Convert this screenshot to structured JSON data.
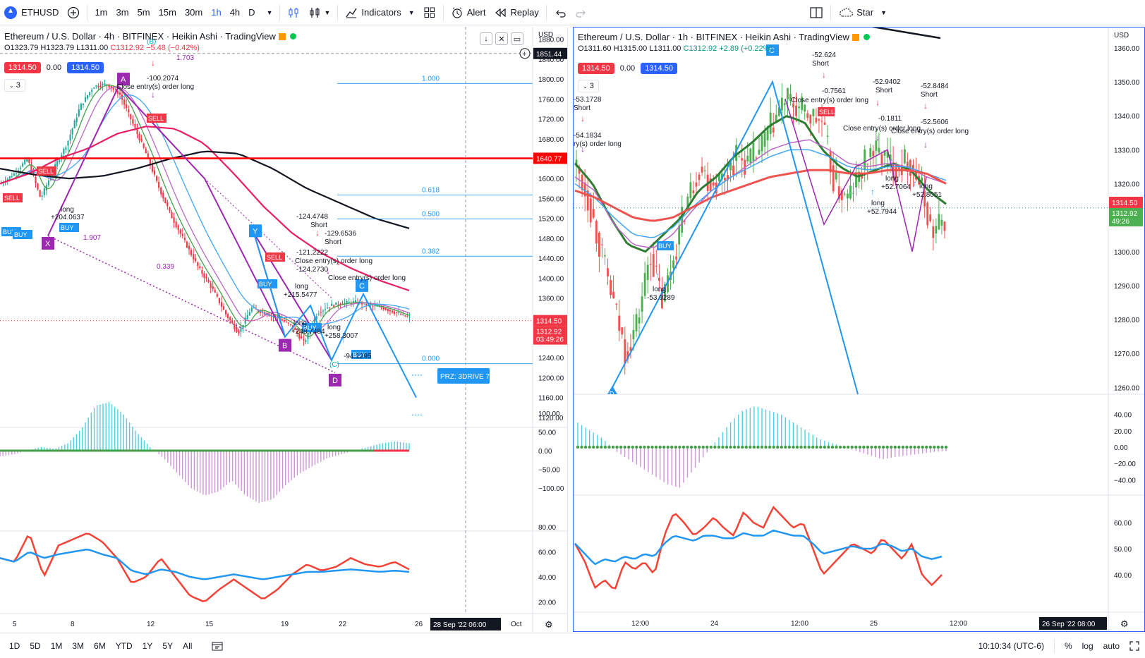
{
  "toolbar": {
    "symbol": "ETHUSD",
    "timeframes": [
      "1m",
      "3m",
      "5m",
      "15m",
      "30m",
      "1h",
      "4h",
      "D"
    ],
    "active_timeframe": "1h",
    "indicators_label": "Indicators",
    "alert_label": "Alert",
    "replay_label": "Replay",
    "star_label": "Star"
  },
  "left_chart": {
    "title": "Ethereum / U.S. Dollar · 4h · BITFINEX · Heikin Ashi · TradingView",
    "ohlc": {
      "o": "O1323.79",
      "h": "H1323.79",
      "l": "L1311.00",
      "c": "C1312.92",
      "chg": "−5.48 (−0.42%)"
    },
    "bid": "1314.50",
    "spread": "0.00",
    "ask": "1314.50",
    "collapse_count": "3",
    "currency": "USD",
    "price_ticks": [
      "1880.00",
      "1840.00",
      "1800.00",
      "1760.00",
      "1720.00",
      "1680.00",
      "1640.00",
      "1600.00",
      "1560.00",
      "1520.00",
      "1480.00",
      "1440.00",
      "1400.00",
      "1360.00",
      "1320.00",
      "1280.00",
      "1240.00",
      "1200.00",
      "1160.00",
      "1120.00"
    ],
    "crosshair_price": "1851.44",
    "red_line_price": "1640.77",
    "last_price": "1314.50",
    "close_price": "1312.92",
    "countdown": "03:49:26",
    "macd_ticks": [
      "100.00",
      "50.00",
      "0.00",
      "−50.00",
      "−100.00"
    ],
    "rsi_ticks": [
      "80.00",
      "60.00",
      "40.00",
      "20.00"
    ],
    "x_ticks": [
      "5",
      "8",
      "12",
      "15",
      "19",
      "22",
      "26",
      "Oct"
    ],
    "crosshair_date": "28 Sep '22   06:00",
    "fib_levels": [
      "1.000",
      "0.618",
      "0.500",
      "0.382",
      "0.000"
    ],
    "prz_label": "PRZ: 3DRIVE 7",
    "pattern_points": [
      "X",
      "A",
      "B",
      "C",
      "D"
    ],
    "annotations": [
      "long",
      "+204.0637",
      "-100.2074",
      "Close entry(s) order long",
      "-124.4748",
      "Short",
      "-129.6536",
      "Short",
      "-121.2222",
      "Close entry(s) order long",
      "-124.2730",
      "Close entry(s) order long",
      "long",
      "+215.5477",
      "long",
      "+248.7484",
      "long",
      "+258.3007",
      "-94.1295",
      "(C)",
      "(B)",
      "1.703",
      "1.907",
      "0.339"
    ],
    "signals": [
      "SELL",
      "SELL",
      "SELL",
      "BUY",
      "BUY",
      "BUY",
      "BUY",
      "BUY",
      "BUY"
    ]
  },
  "right_chart": {
    "title": "Ethereum / U.S. Dollar · 1h · BITFINEX · Heikin Ashi · TradingView",
    "ohlc": {
      "o": "O1311.60",
      "h": "H1315.00",
      "l": "L1311.00",
      "c": "C1312.92",
      "chg": "+2.89 (+0.22%)"
    },
    "bid": "1314.50",
    "spread": "0.00",
    "ask": "1314.50",
    "collapse_count": "3",
    "currency": "USD",
    "price_ticks": [
      "1360.00",
      "1350.00",
      "1340.00",
      "1330.00",
      "1320.00",
      "1300.00",
      "1290.00",
      "1280.00",
      "1270.00",
      "1260.00"
    ],
    "last_price": "1314.50",
    "close_price": "1312.92",
    "countdown": "49:26",
    "macd_ticks": [
      "40.00",
      "20.00",
      "0.00",
      "−20.00",
      "−40.00"
    ],
    "rsi_ticks": [
      "60.00",
      "50.00",
      "40.00"
    ],
    "x_ticks": [
      "12:00",
      "24",
      "12:00",
      "25",
      "12:00"
    ],
    "crosshair_date": "26 Sep '22   08:00",
    "annotations": [
      "-53.1728",
      "Short",
      "-54.1834",
      "ry(s) order long",
      "long",
      "-53.9289",
      "-52.624",
      "Short",
      "-0.7561",
      "Close entry(s) order long",
      "-52.9402",
      "Short",
      "-0.1811",
      "Close entry(s) order long",
      "-52.8484",
      "Short",
      "-52.5606",
      "Close entry(s) order long",
      "long",
      "+52.7064",
      "long",
      "+52.8051",
      "long",
      "+52.7944"
    ],
    "pattern_points": [
      "C",
      "D"
    ],
    "signals": [
      "SELL",
      "BUY"
    ]
  },
  "bottombar": {
    "ranges": [
      "1D",
      "5D",
      "1M",
      "3M",
      "6M",
      "YTD",
      "1Y",
      "5Y",
      "All"
    ],
    "clock": "10:10:34 (UTC-6)",
    "percent_label": "%",
    "log_label": "log",
    "auto_label": "auto"
  },
  "colors": {
    "bull": "#26a69a",
    "bear": "#f23645",
    "blue": "#2962ff",
    "pattern_blue": "#2196f3",
    "purple": "#9c27b0",
    "red_line": "#ff0000",
    "ma_black": "#131722",
    "ma_pink": "#e91e63"
  }
}
